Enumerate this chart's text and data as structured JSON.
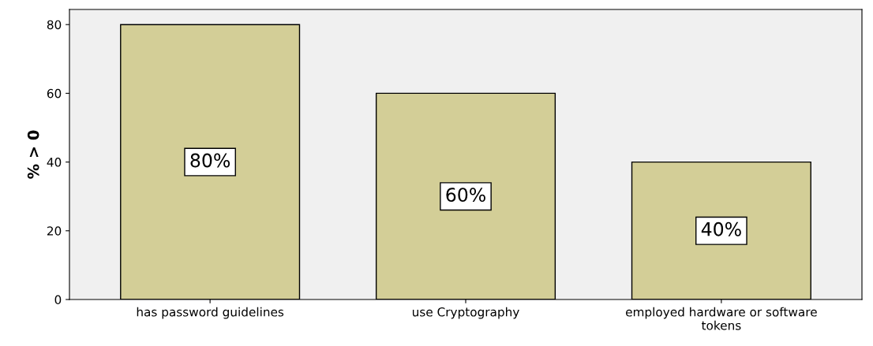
{
  "chart_data": {
    "type": "bar",
    "ylabel": "% > 0",
    "categories": [
      "has password guidelines",
      "use Cryptography",
      "employed hardware or software\ntokens"
    ],
    "values": [
      80,
      60,
      40
    ],
    "color": "#d3ce97",
    "value_labels": [
      "80%",
      "60%",
      "40%"
    ],
    "ylim": [
      0,
      84.4
    ],
    "yticks": [
      0,
      20,
      40,
      60,
      80
    ],
    "grid": false,
    "legend": false
  }
}
